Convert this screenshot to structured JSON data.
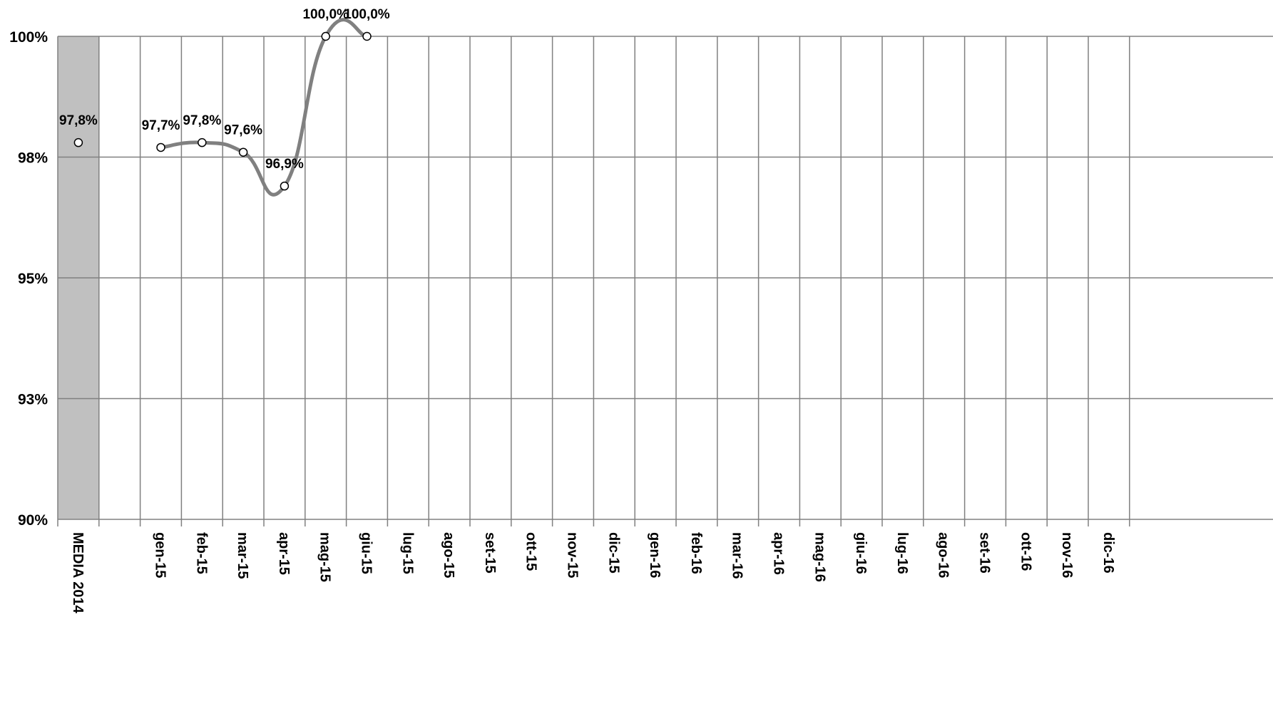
{
  "chart_data": {
    "type": "line",
    "categories": [
      "MEDIA 2014",
      "",
      "gen-15",
      "feb-15",
      "mar-15",
      "apr-15",
      "mag-15",
      "giu-15",
      "lug-15",
      "ago-15",
      "set-15",
      "ott-15",
      "nov-15",
      "dic-15",
      "gen-16",
      "feb-16",
      "mar-16",
      "apr-16",
      "mag-16",
      "giu-16",
      "lug-16",
      "ago-16",
      "set-16",
      "ott-16",
      "nov-16",
      "dic-16"
    ],
    "y_ticks": [
      "90%",
      "93%",
      "95%",
      "98%",
      "100%"
    ],
    "ylim": [
      90,
      100
    ],
    "grid": true,
    "baseline": {
      "category": "MEDIA 2014",
      "value": 97.8,
      "label": "97,8%",
      "highlight_color": "#c0c0c0"
    },
    "series": [
      {
        "values": [
          null,
          null,
          97.7,
          97.8,
          97.6,
          96.9,
          100.0,
          100.0,
          null,
          null,
          null,
          null,
          null,
          null,
          null,
          null,
          null,
          null,
          null,
          null,
          null,
          null,
          null,
          null,
          null,
          null
        ],
        "labels": [
          "",
          "",
          "97,7%",
          "97,8%",
          "97,6%",
          "96,9%",
          "100,0%",
          "100,0%",
          "",
          "",
          "",
          "",
          "",
          "",
          "",
          "",
          "",
          "",
          "",
          "",
          "",
          "",
          "",
          "",
          "",
          ""
        ],
        "color": "#808080"
      }
    ]
  }
}
